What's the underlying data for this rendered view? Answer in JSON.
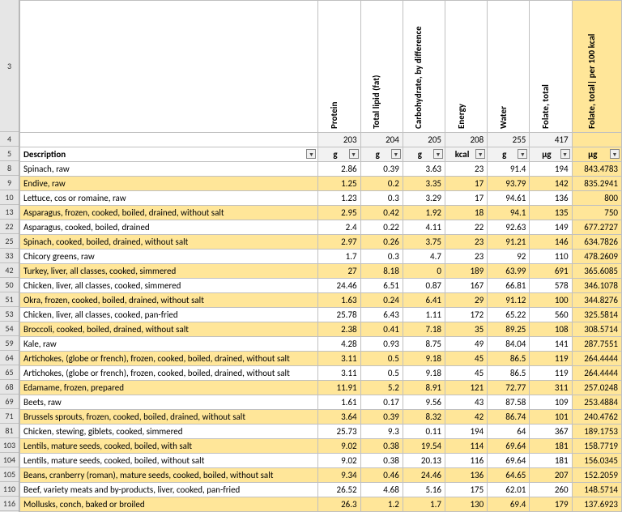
{
  "sheet": {
    "row_numbers": [
      3,
      4,
      5,
      8,
      9,
      10,
      13,
      22,
      25,
      33,
      42,
      50,
      51,
      53,
      54,
      59,
      64,
      65,
      68,
      69,
      71,
      81,
      103,
      104,
      105,
      110,
      116
    ],
    "headers": [
      "Protein",
      "Total lipid (fat)",
      "Carbohydrate, by difference",
      "Energy",
      "Water",
      "Folate, total",
      "Folate, total| per 100 kcal"
    ],
    "codes": [
      "203",
      "204",
      "205",
      "208",
      "255",
      "417",
      ""
    ],
    "desc_label": "Description",
    "units": [
      "g",
      "g",
      "g",
      "kcal",
      "g",
      "µg",
      "µg"
    ],
    "rows": [
      {
        "d": "Spinach, raw",
        "v": [
          "2.86",
          "0.39",
          "3.63",
          "23",
          "91.4",
          "194",
          "843.4783"
        ],
        "b": 0
      },
      {
        "d": "Endive, raw",
        "v": [
          "1.25",
          "0.2",
          "3.35",
          "17",
          "93.79",
          "142",
          "835.2941"
        ],
        "b": 1
      },
      {
        "d": "Lettuce, cos or romaine, raw",
        "v": [
          "1.23",
          "0.3",
          "3.29",
          "17",
          "94.61",
          "136",
          "800"
        ],
        "b": 0
      },
      {
        "d": "Asparagus, frozen, cooked, boiled, drained, without salt",
        "v": [
          "2.95",
          "0.42",
          "1.92",
          "18",
          "94.1",
          "135",
          "750"
        ],
        "b": 1
      },
      {
        "d": "Asparagus, cooked, boiled, drained",
        "v": [
          "2.4",
          "0.22",
          "4.11",
          "22",
          "92.63",
          "149",
          "677.2727"
        ],
        "b": 0
      },
      {
        "d": "Spinach, cooked, boiled, drained, without salt",
        "v": [
          "2.97",
          "0.26",
          "3.75",
          "23",
          "91.21",
          "146",
          "634.7826"
        ],
        "b": 1
      },
      {
        "d": "Chicory greens, raw",
        "v": [
          "1.7",
          "0.3",
          "4.7",
          "23",
          "92",
          "110",
          "478.2609"
        ],
        "b": 0
      },
      {
        "d": "Turkey, liver, all classes, cooked, simmered",
        "v": [
          "27",
          "8.18",
          "0",
          "189",
          "63.99",
          "691",
          "365.6085"
        ],
        "b": 1
      },
      {
        "d": "Chicken, liver, all classes, cooked, simmered",
        "v": [
          "24.46",
          "6.51",
          "0.87",
          "167",
          "66.81",
          "578",
          "346.1078"
        ],
        "b": 0
      },
      {
        "d": "Okra, frozen, cooked, boiled, drained, without salt",
        "v": [
          "1.63",
          "0.24",
          "6.41",
          "29",
          "91.12",
          "100",
          "344.8276"
        ],
        "b": 1
      },
      {
        "d": "Chicken, liver, all classes, cooked, pan-fried",
        "v": [
          "25.78",
          "6.43",
          "1.11",
          "172",
          "65.22",
          "560",
          "325.5814"
        ],
        "b": 0
      },
      {
        "d": "Broccoli, cooked, boiled, drained, without salt",
        "v": [
          "2.38",
          "0.41",
          "7.18",
          "35",
          "89.25",
          "108",
          "308.5714"
        ],
        "b": 1
      },
      {
        "d": "Kale, raw",
        "v": [
          "4.28",
          "0.93",
          "8.75",
          "49",
          "84.04",
          "141",
          "287.7551"
        ],
        "b": 0
      },
      {
        "d": "Artichokes, (globe or french), frozen, cooked, boiled, drained, without salt",
        "v": [
          "3.11",
          "0.5",
          "9.18",
          "45",
          "86.5",
          "119",
          "264.4444"
        ],
        "b": 1
      },
      {
        "d": "Artichokes, (globe or french), frozen, cooked, boiled, drained, without salt",
        "v": [
          "3.11",
          "0.5",
          "9.18",
          "45",
          "86.5",
          "119",
          "264.4444"
        ],
        "b": 0
      },
      {
        "d": "Edamame, frozen, prepared",
        "v": [
          "11.91",
          "5.2",
          "8.91",
          "121",
          "72.77",
          "311",
          "257.0248"
        ],
        "b": 1
      },
      {
        "d": "Beets, raw",
        "v": [
          "1.61",
          "0.17",
          "9.56",
          "43",
          "87.58",
          "109",
          "253.4884"
        ],
        "b": 0
      },
      {
        "d": "Brussels sprouts, frozen, cooked, boiled, drained, without salt",
        "v": [
          "3.64",
          "0.39",
          "8.32",
          "42",
          "86.74",
          "101",
          "240.4762"
        ],
        "b": 1
      },
      {
        "d": "Chicken, stewing, giblets, cooked, simmered",
        "v": [
          "25.73",
          "9.3",
          "0.11",
          "194",
          "64",
          "367",
          "189.1753"
        ],
        "b": 0
      },
      {
        "d": "Lentils, mature seeds, cooked, boiled, with salt",
        "v": [
          "9.02",
          "0.38",
          "19.54",
          "114",
          "69.64",
          "181",
          "158.7719"
        ],
        "b": 1
      },
      {
        "d": "Lentils, mature seeds, cooked, boiled, without salt",
        "v": [
          "9.02",
          "0.38",
          "20.13",
          "116",
          "69.64",
          "181",
          "156.0345"
        ],
        "b": 0
      },
      {
        "d": "Beans, cranberry (roman), mature seeds, cooked, boiled, without salt",
        "v": [
          "9.34",
          "0.46",
          "24.46",
          "136",
          "64.65",
          "207",
          "152.2059"
        ],
        "b": 1
      },
      {
        "d": "Beef, variety meats and by-products, liver, cooked, pan-fried",
        "v": [
          "26.52",
          "4.68",
          "5.16",
          "175",
          "62.01",
          "260",
          "148.5714"
        ],
        "b": 0
      },
      {
        "d": "Mollusks, conch, baked or broiled",
        "v": [
          "26.3",
          "1.2",
          "1.7",
          "130",
          "69.4",
          "179",
          "137.6923"
        ],
        "b": 1
      }
    ],
    "colors": {
      "highlight": "#ffe699",
      "grid": "#c0c0c0",
      "rowhdr_bg": "#e6e6e6",
      "codebg": "#f2f2f2"
    }
  }
}
